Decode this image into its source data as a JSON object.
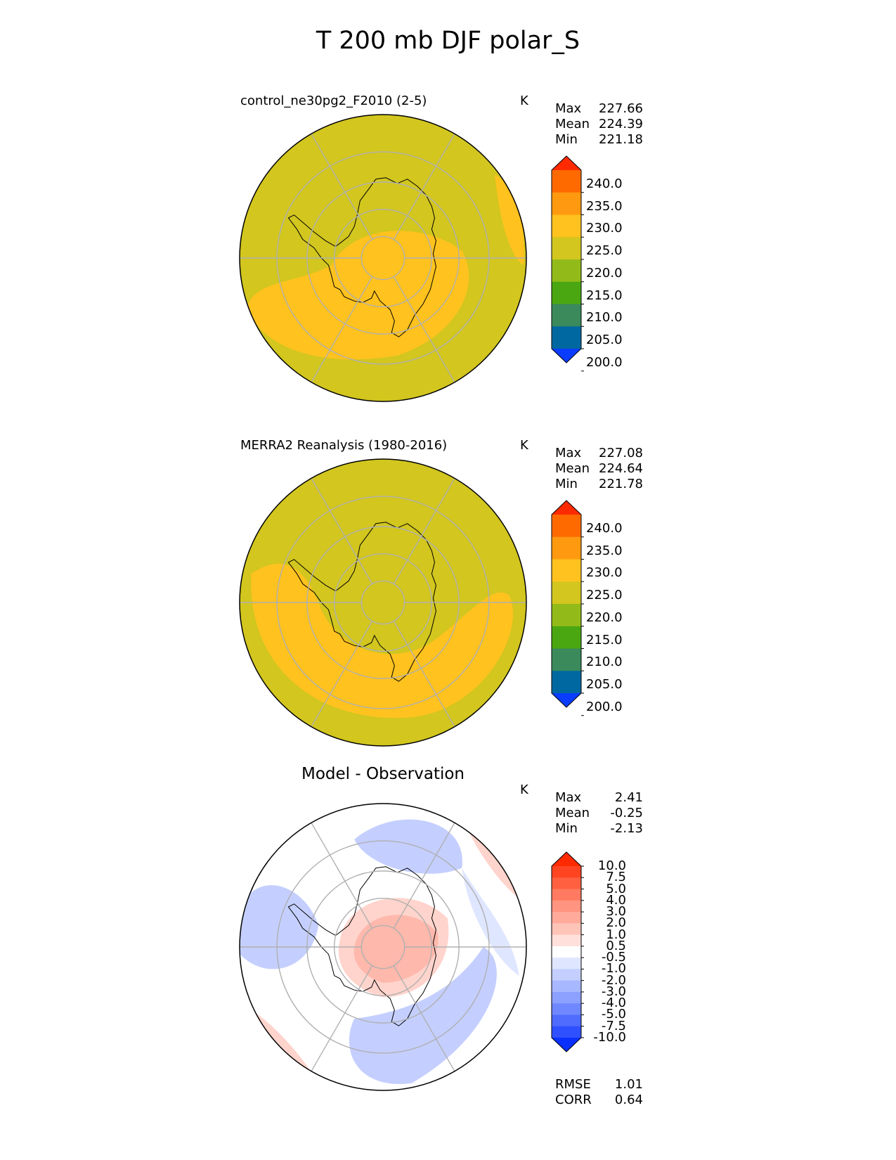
{
  "title": "T 200 mb DJF polar_S",
  "chart_data": [
    {
      "type": "heatmap",
      "projection": "south-polar-stereographic",
      "title": "control_ne30pg2_F2010 (2-5)",
      "units": "K",
      "stats": {
        "Max": "227.66",
        "Mean": "224.39",
        "Min": "221.18"
      },
      "colorbar": {
        "ticks": [
          "240.0",
          "235.0",
          "230.0",
          "225.0",
          "220.0",
          "215.0",
          "210.0",
          "205.0",
          "200.0"
        ],
        "colors": [
          "#ff2a00",
          "#ff6a00",
          "#ff9a10",
          "#ffc21e",
          "#d2c61f",
          "#92bb19",
          "#4aa711",
          "#3a8a5c",
          "#0068a0",
          "#0a3cff"
        ],
        "extend": "both"
      },
      "field_colors": {
        "background": "#d2c61f",
        "warm": "#ffc21e"
      }
    },
    {
      "type": "heatmap",
      "projection": "south-polar-stereographic",
      "title": "MERRA2 Reanalysis (1980-2016)",
      "units": "K",
      "stats": {
        "Max": "227.08",
        "Mean": "224.64",
        "Min": "221.78"
      },
      "colorbar": {
        "ticks": [
          "240.0",
          "235.0",
          "230.0",
          "225.0",
          "220.0",
          "215.0",
          "210.0",
          "205.0",
          "200.0"
        ],
        "colors": [
          "#ff2a00",
          "#ff6a00",
          "#ff9a10",
          "#ffc21e",
          "#d2c61f",
          "#92bb19",
          "#4aa711",
          "#3a8a5c",
          "#0068a0",
          "#0a3cff"
        ],
        "extend": "both"
      },
      "field_colors": {
        "background": "#d2c61f",
        "warm": "#ffc21e"
      }
    },
    {
      "type": "heatmap",
      "projection": "south-polar-stereographic",
      "title": "Model - Observation",
      "units": "K",
      "stats": {
        "Max": "2.41",
        "Mean": "-0.25",
        "Min": "-2.13"
      },
      "colorbar": {
        "ticks": [
          "10.0",
          "7.5",
          "5.0",
          "4.0",
          "3.0",
          "2.0",
          "1.0",
          "0.5",
          "-0.5",
          "-1.0",
          "-2.0",
          "-3.0",
          "-4.0",
          "-5.0",
          "-7.5",
          "-10.0"
        ],
        "colors": [
          "#ff2a00",
          "#ff4422",
          "#ff6040",
          "#ff7a60",
          "#ff9480",
          "#ffaa9a",
          "#ffc4b8",
          "#ffe0da",
          "#ffffff",
          "#dfe6ff",
          "#c4cfff",
          "#a8b8ff",
          "#8ca0ff",
          "#6f88ff",
          "#4f6cff",
          "#2f50ff",
          "#0a30ff"
        ],
        "extend": "both"
      },
      "error_stats": {
        "RMSE": "1.01",
        "CORR": "0.64"
      },
      "field_colors": {
        "warm": "#ffb8ac",
        "warm_light": "#ffd4cc",
        "cool": "#c4cfff",
        "cool_light": "#dfe6ff",
        "neutral": "#ffffff"
      }
    }
  ]
}
